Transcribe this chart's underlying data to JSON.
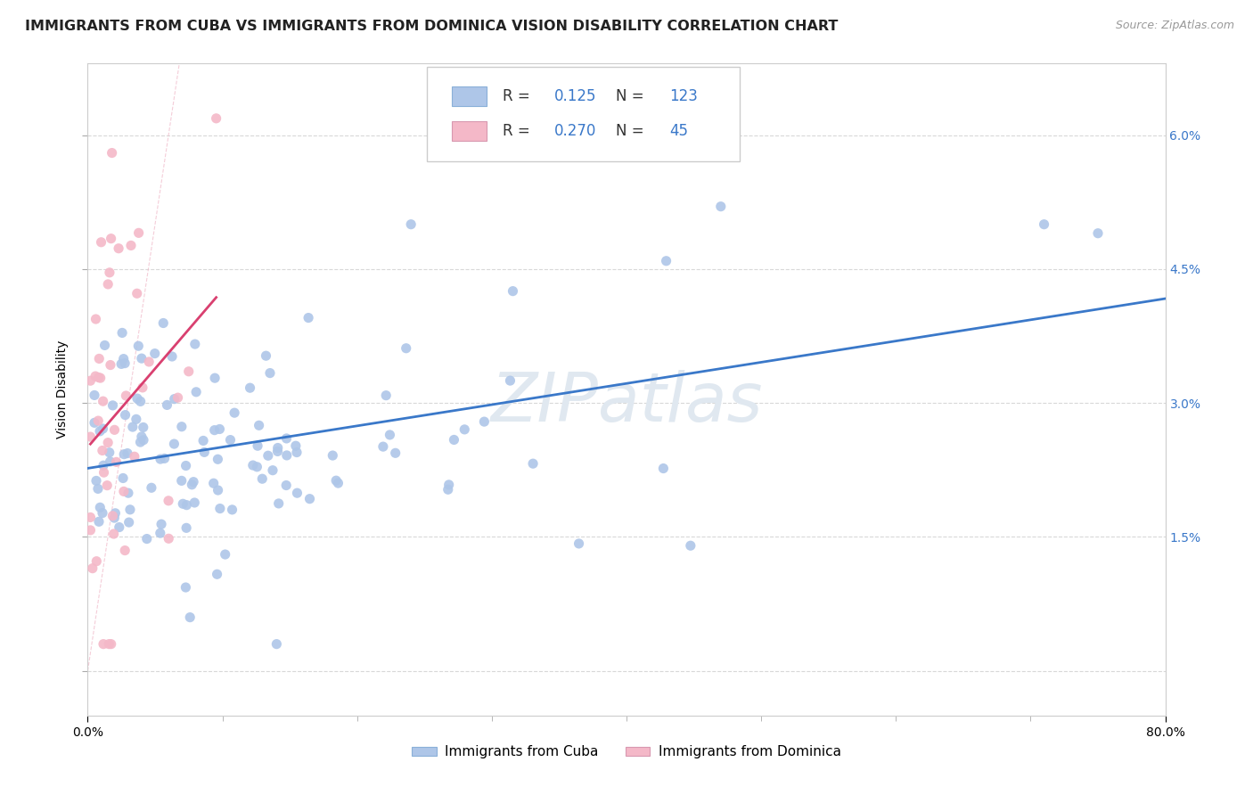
{
  "title": "IMMIGRANTS FROM CUBA VS IMMIGRANTS FROM DOMINICA VISION DISABILITY CORRELATION CHART",
  "source": "Source: ZipAtlas.com",
  "ylabel": "Vision Disability",
  "y_ticks": [
    0.0,
    0.015,
    0.03,
    0.045,
    0.06
  ],
  "y_tick_labels": [
    "",
    "1.5%",
    "3.0%",
    "4.5%",
    "6.0%"
  ],
  "xlim": [
    0.0,
    0.8
  ],
  "ylim": [
    -0.005,
    0.068
  ],
  "legend_cuba_label": "Immigrants from Cuba",
  "legend_dominica_label": "Immigrants from Dominica",
  "R_cuba": 0.125,
  "N_cuba": 123,
  "R_dominica": 0.27,
  "N_dominica": 45,
  "cuba_color": "#aec6e8",
  "dominica_color": "#f4b8c8",
  "cuba_line_color": "#3a78c9",
  "dominica_line_color": "#d94070",
  "watermark": "ZIPatlas",
  "title_fontsize": 11.5,
  "axis_label_fontsize": 10,
  "tick_fontsize": 10,
  "grid_color": "#d8d8d8",
  "diagonal_color": "#f0b8c8"
}
